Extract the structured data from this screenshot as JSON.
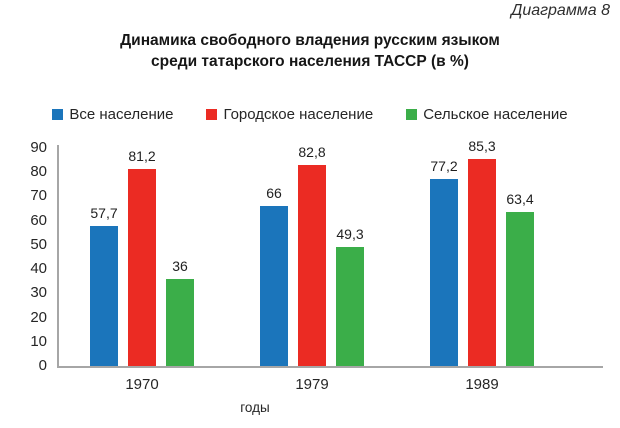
{
  "header": {
    "corner_label": "Диаграмма 8",
    "title_line1": "Динамика свободного владения русским языком",
    "title_line2": "среди татарского населения ТАССР (в %)"
  },
  "chart_data": {
    "type": "bar",
    "title": "Динамика свободного владения русским языком среди татарского населения ТАССР (в %)",
    "categories": [
      "1970",
      "1979",
      "1989"
    ],
    "series": [
      {
        "name": "Все население",
        "color": "#1B75BB",
        "values": [
          57.7,
          66,
          77.2
        ],
        "labels": [
          "57,7",
          "66",
          "77,2"
        ]
      },
      {
        "name": "Городское население",
        "color": "#EB2B23",
        "values": [
          81.2,
          82.8,
          85.3
        ],
        "labels": [
          "81,2",
          "82,8",
          "85,3"
        ]
      },
      {
        "name": "Сельское население",
        "color": "#3BAE49",
        "values": [
          36,
          49.3,
          63.4
        ],
        "labels": [
          "36",
          "49,3",
          "63,4"
        ]
      }
    ],
    "xlabel": "годы",
    "ylabel": "",
    "ylim": [
      0,
      90
    ],
    "yticks": [
      0,
      10,
      20,
      30,
      40,
      50,
      60,
      70,
      80,
      90
    ],
    "grid": false,
    "legend_position": "top"
  },
  "colors": {
    "axis": "#a6a6a6",
    "text": "#262626"
  }
}
